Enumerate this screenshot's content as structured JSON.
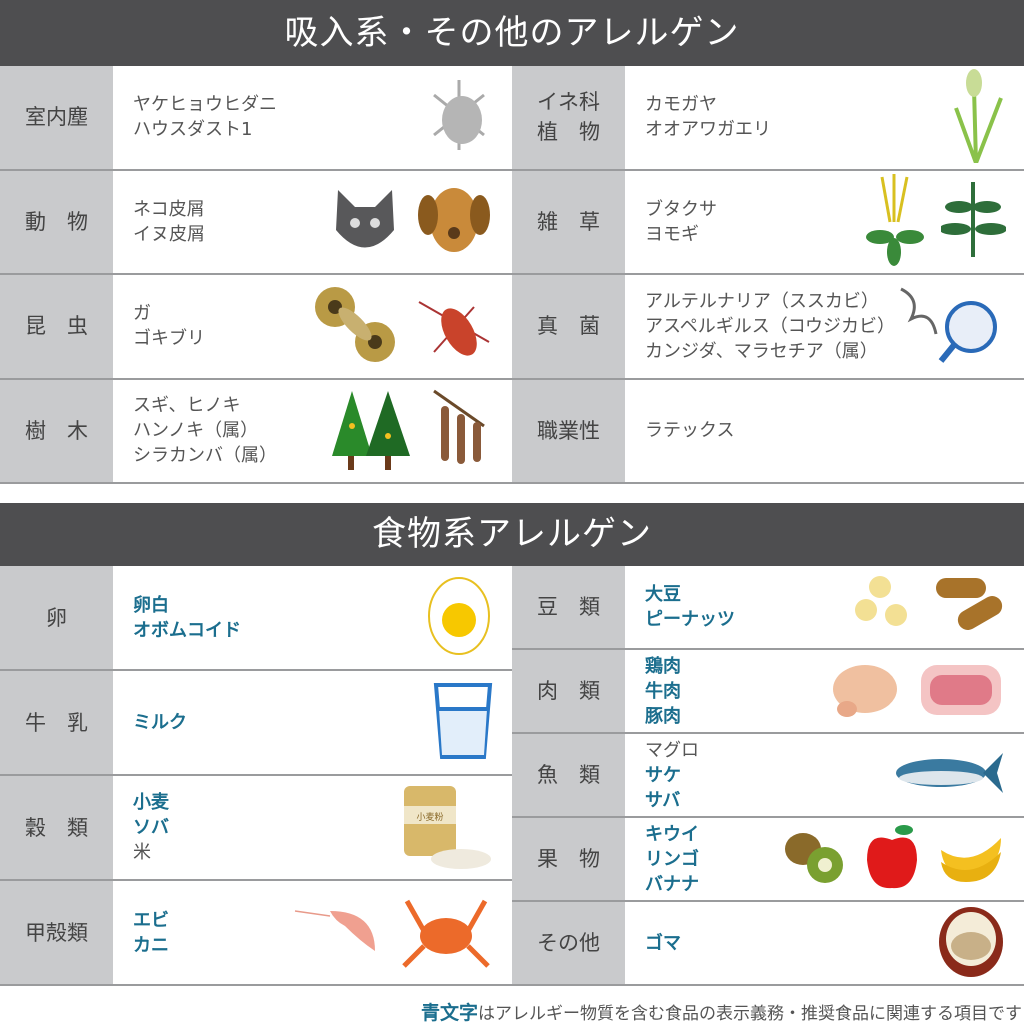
{
  "inhalant": {
    "title": "吸入系・その他のアレルゲン",
    "left": [
      {
        "label": "室内塵",
        "items": [
          "ヤケヒョウヒダニ",
          "ハウスダスト1"
        ],
        "icons": [
          "dust-mite-icon"
        ]
      },
      {
        "label": "動　物",
        "items": [
          "ネコ皮屑",
          "イヌ皮屑"
        ],
        "icons": [
          "cat-icon",
          "dog-icon"
        ]
      },
      {
        "label": "昆　虫",
        "items": [
          "ガ",
          "ゴキブリ"
        ],
        "icons": [
          "moth-icon",
          "cockroach-icon"
        ]
      },
      {
        "label": "樹　木",
        "items": [
          "スギ、ヒノキ",
          "ハンノキ（属）",
          "シラカンバ（属）"
        ],
        "icons": [
          "cedar-tree-icon",
          "alder-catkin-icon"
        ]
      }
    ],
    "right": [
      {
        "label": "イネ科\n植　物",
        "items": [
          "カモガヤ",
          "オオアワガエリ"
        ],
        "icons": [
          "grass-icon"
        ]
      },
      {
        "label": "雑　草",
        "items": [
          "ブタクサ",
          "ヨモギ"
        ],
        "icons": [
          "ragweed-icon",
          "mugwort-icon"
        ]
      },
      {
        "label": "真　菌",
        "items": [
          "アルテルナリア（ススカビ）",
          "アスペルギルス（コウジカビ）",
          "カンジダ、マラセチア（属）"
        ],
        "icons": [
          "mold-magnifier-icon"
        ]
      },
      {
        "label": "職業性",
        "items": [
          "ラテックス"
        ],
        "icons": []
      }
    ]
  },
  "food": {
    "title": "食物系アレルゲン",
    "left": [
      {
        "label": "卵",
        "items": [
          {
            "t": "卵白",
            "blue": true
          },
          {
            "t": "オボムコイド",
            "blue": true
          }
        ],
        "icons": [
          "boiled-egg-icon"
        ]
      },
      {
        "label": "牛　乳",
        "items": [
          {
            "t": "ミルク",
            "blue": true
          }
        ],
        "icons": [
          "milk-glass-icon"
        ]
      },
      {
        "label": "穀　類",
        "items": [
          {
            "t": "小麦",
            "blue": true
          },
          {
            "t": "ソバ",
            "blue": true
          },
          {
            "t": "米",
            "blue": false
          }
        ],
        "icons": [
          "flour-bag-icon"
        ],
        "icon_text": "小麦粉"
      },
      {
        "label": "甲殻類",
        "items": [
          {
            "t": "エビ",
            "blue": true
          },
          {
            "t": "カニ",
            "blue": true
          }
        ],
        "icons": [
          "shrimp-icon",
          "crab-icon"
        ]
      }
    ],
    "right": [
      {
        "label": "豆　類",
        "items": [
          {
            "t": "大豆",
            "blue": true
          },
          {
            "t": "ピーナッツ",
            "blue": true
          }
        ],
        "icons": [
          "soybean-icon",
          "peanut-icon"
        ]
      },
      {
        "label": "肉　類",
        "items": [
          {
            "t": "鶏肉",
            "blue": true
          },
          {
            "t": "牛肉",
            "blue": true
          },
          {
            "t": "豚肉",
            "blue": true
          }
        ],
        "icons": [
          "chicken-icon",
          "meat-icon"
        ]
      },
      {
        "label": "魚　類",
        "items": [
          {
            "t": "マグロ",
            "blue": false
          },
          {
            "t": "サケ",
            "blue": true
          },
          {
            "t": "サバ",
            "blue": true
          }
        ],
        "icons": [
          "fish-icon"
        ]
      },
      {
        "label": "果　物",
        "items": [
          {
            "t": "キウイ",
            "blue": true
          },
          {
            "t": "リンゴ",
            "blue": true
          },
          {
            "t": "バナナ",
            "blue": true
          }
        ],
        "icons": [
          "kiwi-icon",
          "apple-icon",
          "banana-icon"
        ]
      },
      {
        "label": "その他",
        "items": [
          {
            "t": "ゴマ",
            "blue": true
          }
        ],
        "icons": [
          "sesame-bowl-icon"
        ]
      }
    ]
  },
  "footer": {
    "highlight": "青文字",
    "text": "はアレルギー物質を含む食品の表示義務・推奨食品に関連する項目です"
  },
  "colors": {
    "header": "#4e4e50",
    "label_bg": "#c9cacc",
    "blue_text": "#1b6e8e"
  }
}
